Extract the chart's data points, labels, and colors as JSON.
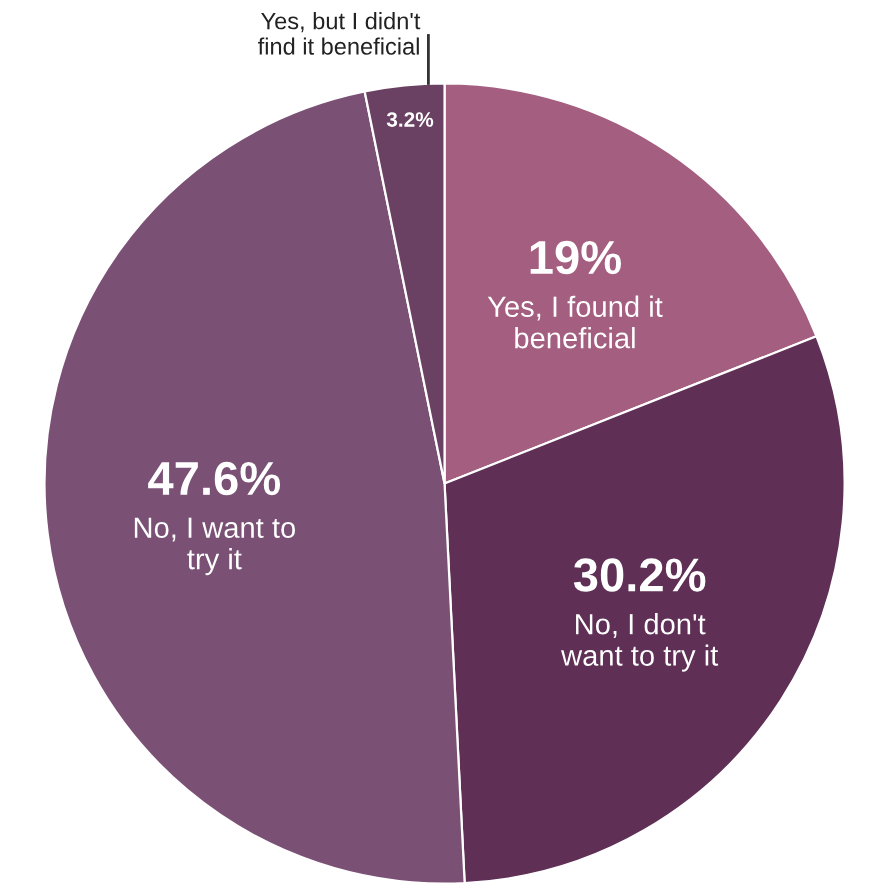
{
  "chart_data": {
    "type": "pie",
    "categories": [
      "Yes, I found it\nbeneficial",
      "No, I don't\nwant to try it",
      "No, I want to\ntry it",
      "Yes, but I didn't\nfind it beneficial"
    ],
    "values": [
      19,
      30.2,
      47.6,
      3.2
    ],
    "value_labels": [
      "19%",
      "30.2%",
      "47.6%",
      "3.2%"
    ],
    "colors": [
      "#a45e80",
      "#5f2f55",
      "#7a5075",
      "#6b4163"
    ],
    "legend": false
  }
}
